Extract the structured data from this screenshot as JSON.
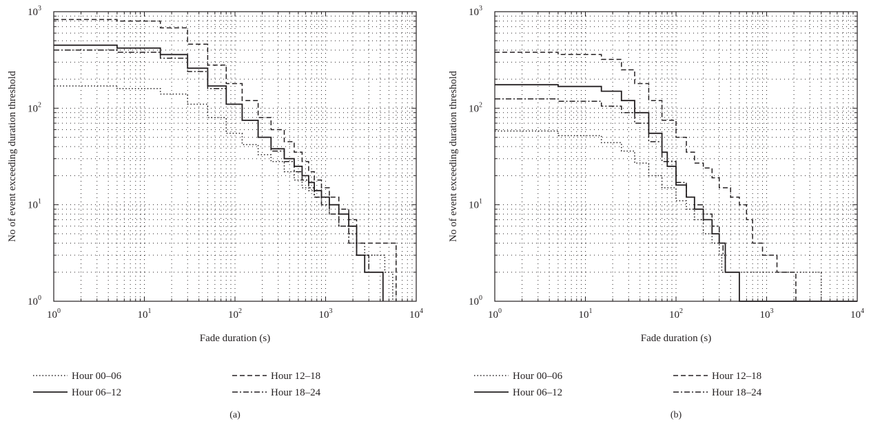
{
  "chart_data": [
    {
      "type": "line",
      "caption": "(a)",
      "xlabel": "Fade duration (s)",
      "ylabel": "No of event exceeding duration threshold",
      "xscale": "log",
      "yscale": "log",
      "xlim": [
        1,
        10000
      ],
      "ylim": [
        1,
        1000
      ],
      "xticks": [
        [
          "10",
          "0"
        ],
        [
          "10",
          "1"
        ],
        [
          "10",
          "2"
        ],
        [
          "10",
          "3"
        ],
        [
          "10",
          "4"
        ]
      ],
      "yticks": [
        [
          "10",
          "0"
        ],
        [
          "10",
          "1"
        ],
        [
          "10",
          "2"
        ],
        [
          "10",
          "3"
        ]
      ],
      "grid": true,
      "legend_position": "below",
      "series": [
        {
          "name": "Hour 00–06",
          "style": "dotted",
          "x": [
            1,
            5,
            15,
            30,
            50,
            80,
            120,
            180,
            250,
            350,
            450,
            550,
            650,
            750,
            900,
            1100,
            1400,
            1800,
            2200,
            2700,
            3300,
            4500,
            5500
          ],
          "y": [
            170,
            160,
            140,
            110,
            80,
            55,
            42,
            33,
            28,
            22,
            18,
            15,
            14,
            12,
            10,
            8,
            6,
            5,
            4,
            3,
            3,
            2,
            1
          ]
        },
        {
          "name": "Hour 06–12",
          "style": "solid",
          "x": [
            1,
            5,
            15,
            30,
            50,
            80,
            120,
            180,
            250,
            350,
            450,
            550,
            650,
            750,
            900,
            1100,
            1400,
            1800,
            2200,
            2700,
            4300
          ],
          "y": [
            450,
            420,
            360,
            260,
            170,
            110,
            75,
            50,
            38,
            30,
            25,
            20,
            17,
            14,
            12,
            10,
            8,
            6,
            3,
            2,
            1
          ]
        },
        {
          "name": "Hour 12–18",
          "style": "dashed",
          "x": [
            1,
            5,
            15,
            30,
            50,
            80,
            120,
            180,
            250,
            350,
            450,
            550,
            650,
            750,
            900,
            1100,
            1400,
            1800,
            2200,
            3500,
            6000
          ],
          "y": [
            830,
            800,
            680,
            460,
            280,
            180,
            120,
            80,
            60,
            45,
            35,
            28,
            22,
            18,
            15,
            12,
            9,
            7,
            4,
            4,
            1
          ]
        },
        {
          "name": "Hour 18–24",
          "style": "dashdot",
          "x": [
            1,
            5,
            15,
            30,
            50,
            80,
            120,
            180,
            250,
            350,
            450,
            550,
            650,
            750,
            900,
            1100,
            1400,
            1800,
            2200,
            3000
          ],
          "y": [
            400,
            380,
            330,
            240,
            160,
            110,
            75,
            50,
            36,
            28,
            22,
            18,
            15,
            12,
            10,
            8,
            6,
            4,
            3,
            2
          ]
        }
      ]
    },
    {
      "type": "line",
      "caption": "(b)",
      "xlabel": "Fade duration (s)",
      "ylabel": "No of event exceeding duration threshold",
      "xscale": "log",
      "yscale": "log",
      "xlim": [
        1,
        10000
      ],
      "ylim": [
        1,
        1000
      ],
      "xticks": [
        [
          "10",
          "0"
        ],
        [
          "10",
          "1"
        ],
        [
          "10",
          "2"
        ],
        [
          "10",
          "3"
        ],
        [
          "10",
          "4"
        ]
      ],
      "yticks": [
        [
          "10",
          "0"
        ],
        [
          "10",
          "1"
        ],
        [
          "10",
          "2"
        ],
        [
          "10",
          "3"
        ]
      ],
      "grid": true,
      "legend_position": "below",
      "series": [
        {
          "name": "Hour 00–06",
          "style": "dotted",
          "x": [
            1,
            5,
            15,
            25,
            35,
            50,
            70,
            100,
            130,
            160,
            200,
            250,
            300,
            320,
            350,
            2000,
            4000
          ],
          "y": [
            58,
            52,
            44,
            36,
            27,
            20,
            15,
            11,
            9,
            7,
            5,
            4,
            3,
            2,
            2,
            2,
            1
          ]
        },
        {
          "name": "Hour 06–12",
          "style": "solid",
          "x": [
            1,
            5,
            15,
            25,
            35,
            50,
            70,
            80,
            100,
            130,
            160,
            200,
            250,
            300,
            350,
            500,
            1000,
            10000
          ],
          "y": [
            175,
            168,
            150,
            120,
            90,
            55,
            35,
            25,
            16,
            12,
            9,
            7,
            5,
            4,
            2,
            1,
            1,
            1
          ]
        },
        {
          "name": "Hour 12–18",
          "style": "dashed",
          "x": [
            1,
            5,
            15,
            25,
            35,
            50,
            70,
            100,
            130,
            160,
            200,
            250,
            300,
            400,
            500,
            600,
            700,
            900,
            1300,
            2100
          ],
          "y": [
            380,
            360,
            320,
            250,
            180,
            120,
            75,
            50,
            35,
            27,
            24,
            19,
            15,
            12,
            10,
            7,
            4,
            3,
            2,
            1
          ]
        },
        {
          "name": "Hour 18–24",
          "style": "dashdot",
          "x": [
            1,
            5,
            15,
            25,
            35,
            50,
            70,
            100,
            130,
            160,
            200,
            250,
            300,
            330,
            350,
            400
          ],
          "y": [
            125,
            118,
            105,
            90,
            70,
            45,
            28,
            17,
            12,
            10,
            8,
            6,
            4,
            3,
            2,
            2
          ]
        }
      ]
    }
  ]
}
